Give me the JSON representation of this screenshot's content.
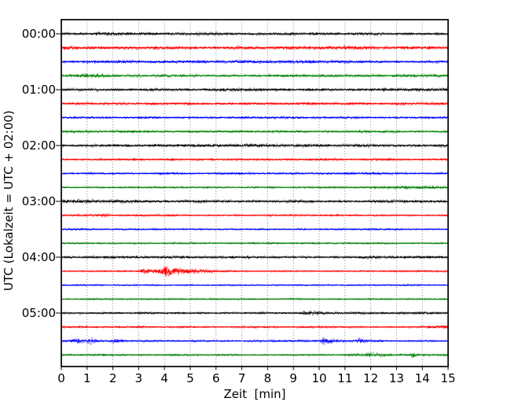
{
  "chart_data": {
    "type": "line",
    "subtype": "helicorder-drumplot",
    "title": "",
    "xlabel": "Zeit  [min]",
    "ylabel": "UTC (Lokalzeit = UTC + 02:00)",
    "xlim": [
      0,
      15
    ],
    "x_tick_labels": [
      "0",
      "1",
      "2",
      "3",
      "4",
      "5",
      "6",
      "7",
      "8",
      "9",
      "10",
      "11",
      "12",
      "13",
      "14",
      "15"
    ],
    "y_tick_labels": [
      "00:00",
      "01:00",
      "02:00",
      "03:00",
      "04:00",
      "05:00"
    ],
    "grid": {
      "vertical_dotted": true,
      "horizontal": false
    },
    "legend": "none",
    "traces_per_hour": 4,
    "minutes_per_trace": 15,
    "color_cycle": [
      "#000000",
      "#ff0000",
      "#0000ff",
      "#008000"
    ],
    "amp_units": "px-halfwidth; events are gaussian envelopes (t=center min, w=half-width min, a=peak amp)",
    "traces": [
      {
        "label": "00:00",
        "color": "#000000",
        "base_amp": 1.7,
        "events": []
      },
      {
        "label": "00:15",
        "color": "#ff0000",
        "base_amp": 1.9,
        "events": []
      },
      {
        "label": "00:30",
        "color": "#0000ff",
        "base_amp": 1.6,
        "events": []
      },
      {
        "label": "00:45",
        "color": "#008000",
        "base_amp": 1.5,
        "events": [
          {
            "t": 1.3,
            "w": 0.7,
            "a": 0.7
          }
        ]
      },
      {
        "label": "01:00",
        "color": "#000000",
        "base_amp": 1.6,
        "events": [
          {
            "t": 12.5,
            "w": 0.08,
            "a": 1.1
          }
        ]
      },
      {
        "label": "01:15",
        "color": "#ff0000",
        "base_amp": 1.4,
        "events": []
      },
      {
        "label": "01:30",
        "color": "#0000ff",
        "base_amp": 1.3,
        "events": []
      },
      {
        "label": "01:45",
        "color": "#008000",
        "base_amp": 1.3,
        "events": []
      },
      {
        "label": "02:00",
        "color": "#000000",
        "base_amp": 1.7,
        "events": []
      },
      {
        "label": "02:15",
        "color": "#ff0000",
        "base_amp": 1.2,
        "events": []
      },
      {
        "label": "02:30",
        "color": "#0000ff",
        "base_amp": 1.2,
        "events": []
      },
      {
        "label": "02:45",
        "color": "#008000",
        "base_amp": 1.0,
        "events": [
          {
            "t": 13.8,
            "w": 1.3,
            "a": 0.8
          }
        ]
      },
      {
        "label": "03:00",
        "color": "#000000",
        "base_amp": 1.6,
        "events": [
          {
            "t": 0.7,
            "w": 0.8,
            "a": 0.5
          }
        ]
      },
      {
        "label": "03:15",
        "color": "#ff0000",
        "base_amp": 1.1,
        "events": [
          {
            "t": 1.7,
            "w": 0.12,
            "a": 1.2
          }
        ]
      },
      {
        "label": "03:30",
        "color": "#0000ff",
        "base_amp": 1.0,
        "events": []
      },
      {
        "label": "03:45",
        "color": "#008000",
        "base_amp": 1.0,
        "events": []
      },
      {
        "label": "04:00",
        "color": "#000000",
        "base_amp": 1.4,
        "events": [
          {
            "t": 7.25,
            "w": 0.05,
            "a": 1.6
          }
        ]
      },
      {
        "label": "04:15",
        "color": "#ff0000",
        "base_amp": 0.9,
        "events": [
          {
            "t": 3.25,
            "w": 0.18,
            "a": 3.0
          },
          {
            "t": 3.6,
            "w": 0.1,
            "a": 1.8
          },
          {
            "t": 4.1,
            "w": 0.26,
            "a": 8.3
          },
          {
            "t": 4.7,
            "w": 0.4,
            "a": 3.2
          },
          {
            "t": 5.4,
            "w": 0.7,
            "a": 1.0
          }
        ]
      },
      {
        "label": "04:30",
        "color": "#0000ff",
        "base_amp": 0.9,
        "events": []
      },
      {
        "label": "04:45",
        "color": "#008000",
        "base_amp": 0.9,
        "events": []
      },
      {
        "label": "05:00",
        "color": "#000000",
        "base_amp": 1.2,
        "events": [
          {
            "t": 9.6,
            "w": 0.4,
            "a": 1.1
          }
        ]
      },
      {
        "label": "05:15",
        "color": "#ff0000",
        "base_amp": 1.1,
        "events": [
          {
            "t": 14.7,
            "w": 0.5,
            "a": 1.2
          }
        ]
      },
      {
        "label": "05:30",
        "color": "#0000ff",
        "base_amp": 1.1,
        "events": [
          {
            "t": 0.6,
            "w": 0.2,
            "a": 1.6
          },
          {
            "t": 1.2,
            "w": 0.25,
            "a": 2.2
          },
          {
            "t": 2.15,
            "w": 0.22,
            "a": 2.5
          },
          {
            "t": 10.2,
            "w": 0.12,
            "a": 3.6
          },
          {
            "t": 10.55,
            "w": 0.3,
            "a": 1.2
          },
          {
            "t": 11.6,
            "w": 0.15,
            "a": 1.9
          }
        ]
      },
      {
        "label": "05:45",
        "color": "#008000",
        "base_amp": 1.0,
        "events": [
          {
            "t": 11.3,
            "w": 0.4,
            "a": 0.6
          },
          {
            "t": 12.0,
            "w": 0.5,
            "a": 1.0
          },
          {
            "t": 12.9,
            "w": 1.0,
            "a": 0.5
          },
          {
            "t": 13.65,
            "w": 0.09,
            "a": 2.0
          }
        ]
      }
    ]
  }
}
